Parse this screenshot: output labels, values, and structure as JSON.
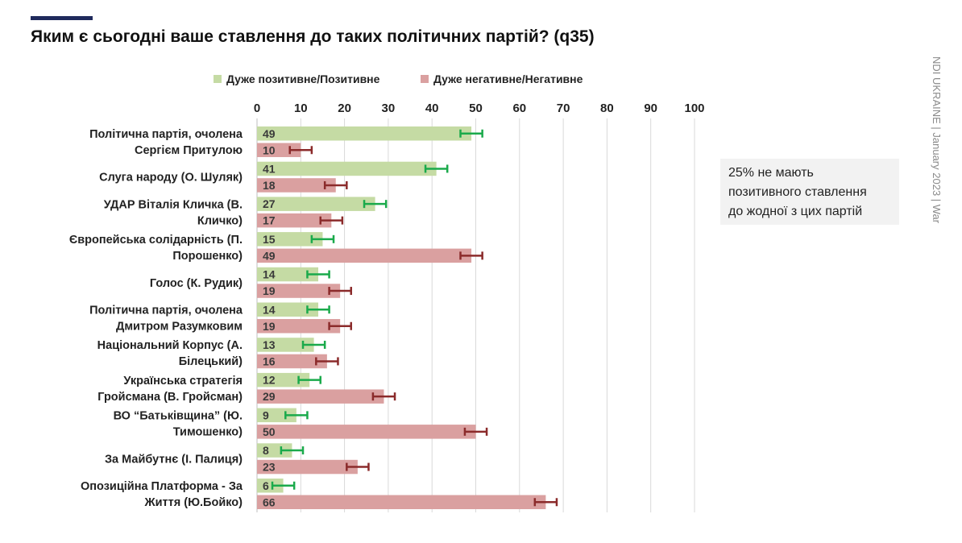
{
  "title": "Яким є сьогодні ваше ставлення до таких політичних партій? (q35)",
  "legend": {
    "positive": "Дуже позитивне/Позитивне",
    "negative": "Дуже негативне/Негативне"
  },
  "note": {
    "line1": "25% не мають",
    "line2": "позитивного ставлення",
    "line3": "до жодної з цих партій"
  },
  "watermark": "NDI UKRAINE | January 2023 | War",
  "colors": {
    "positive_bar": "#c5dba4",
    "negative_bar": "#daa0a0",
    "positive_error": "#1aaa4b",
    "negative_error": "#8b2b2b",
    "accent": "#1f2a5c",
    "grid": "#d9d9d9"
  },
  "chart_data": {
    "type": "bar",
    "orientation": "horizontal",
    "xlim": [
      0,
      100
    ],
    "ticks": [
      0,
      10,
      20,
      30,
      40,
      50,
      60,
      70,
      80,
      90,
      100
    ],
    "grid": true,
    "legend_position": "top",
    "categories": [
      [
        "Політична партія, очолена",
        "Сергієм Притулою"
      ],
      [
        "Слуга народу (О. Шуляк)"
      ],
      [
        "УДАР Віталія Кличка (В.",
        "Кличко)"
      ],
      [
        "Європейська солідарність (П.",
        "Порошенко)"
      ],
      [
        "Голос (К. Рудик)"
      ],
      [
        "Політична партія, очолена",
        "Дмитром Разумковим"
      ],
      [
        "Національний Корпус (А.",
        "Білецький)"
      ],
      [
        "Українська стратегія",
        "Гройсмана (В. Гройсман)"
      ],
      [
        "ВО “Батьківщина” (Ю.",
        "Тимошенко)"
      ],
      [
        "За Майбутнє (І. Палиця)"
      ],
      [
        "Опозиційна Платформа - За",
        "Життя (Ю.Бойко)"
      ]
    ],
    "series": [
      {
        "name": "Дуже позитивне/Позитивне",
        "values": [
          49,
          41,
          27,
          15,
          14,
          14,
          13,
          12,
          9,
          8,
          6
        ],
        "error": 2.5
      },
      {
        "name": "Дуже негативне/Негативне",
        "values": [
          10,
          18,
          17,
          49,
          19,
          19,
          16,
          29,
          50,
          23,
          66
        ],
        "error": 2.5
      }
    ]
  }
}
